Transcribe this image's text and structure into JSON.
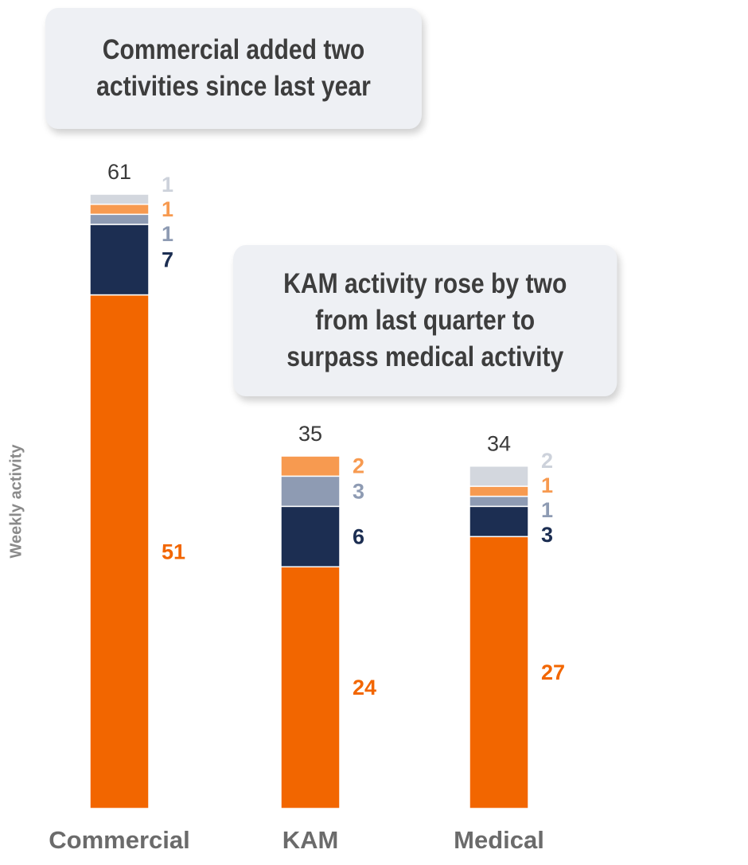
{
  "chart_data": {
    "type": "bar",
    "stacked": true,
    "categories": [
      "Commercial",
      "KAM",
      "Medical"
    ],
    "totals": [
      61,
      35,
      34
    ],
    "ylabel": "Weekly activity",
    "xlabel": "",
    "ylim": [
      0,
      61
    ],
    "grid": false,
    "legend": "none",
    "series": [
      {
        "color": "#F26600",
        "values": [
          51,
          24,
          27
        ]
      },
      {
        "color": "#1C2E52",
        "values": [
          7,
          6,
          3
        ]
      },
      {
        "color": "#8E9BB3",
        "values": [
          1,
          3,
          1
        ]
      },
      {
        "color": "#F79A50",
        "values": [
          1,
          2,
          1
        ]
      },
      {
        "color": "#D3D7DE",
        "values": [
          1,
          0,
          2
        ]
      }
    ],
    "annotations": [
      {
        "lines": [
          "Commercial added two",
          "activities since last year"
        ]
      },
      {
        "lines": [
          "KAM activity rose by two",
          "from last quarter to",
          "surpass medical activity"
        ]
      }
    ]
  }
}
